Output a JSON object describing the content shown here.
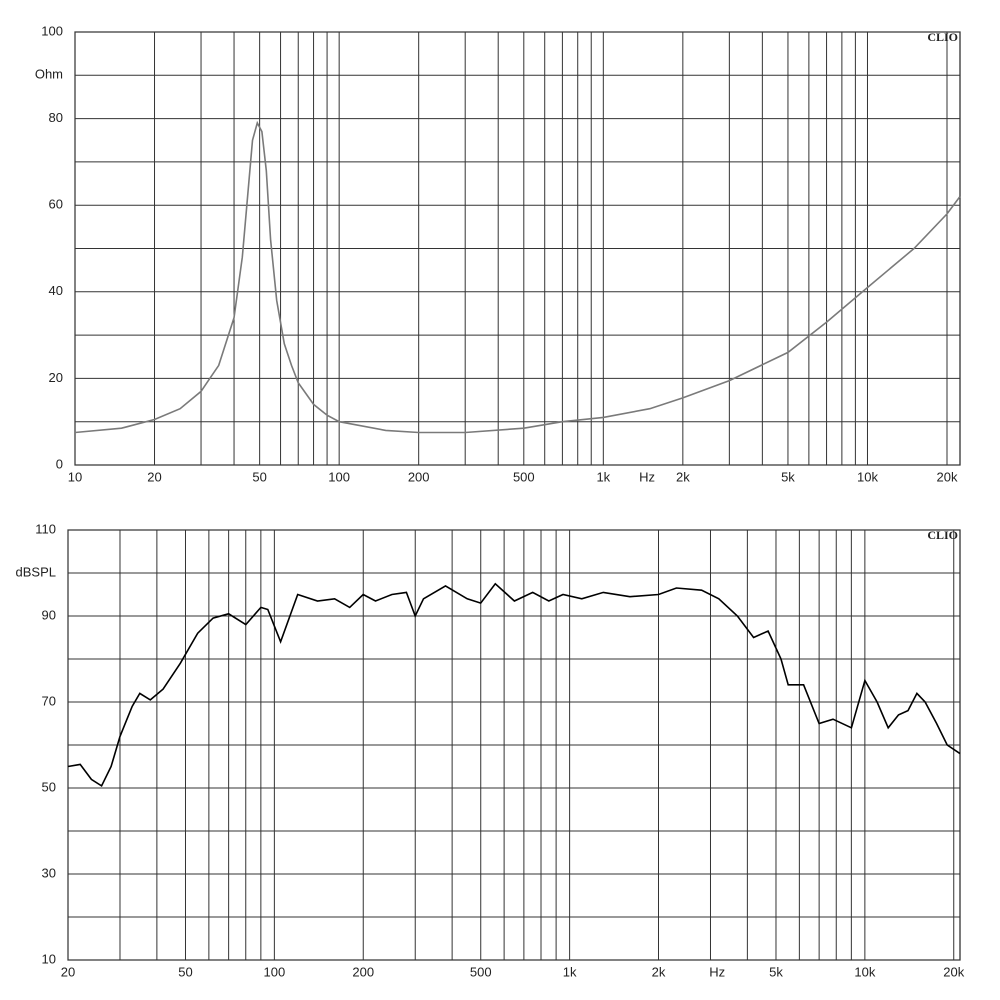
{
  "chart_data": [
    {
      "type": "line",
      "log_x": true,
      "grid": true,
      "ylabel": "Ohm",
      "xlabel": "Hz",
      "annotation": "CLIO",
      "xlim": [
        10,
        22400
      ],
      "ylim": [
        0,
        100
      ],
      "xticks": [
        10,
        20,
        50,
        100,
        200,
        500,
        {
          "value": 1000,
          "label": "1k"
        },
        {
          "value": 2000,
          "label": "2k"
        },
        {
          "value": 5000,
          "label": "5k"
        },
        {
          "value": 10000,
          "label": "10k"
        },
        {
          "value": 20000,
          "label": "20k"
        }
      ],
      "yticks": [
        0,
        20,
        40,
        60,
        80,
        100
      ],
      "x": [
        10,
        15,
        20,
        25,
        30,
        35,
        40,
        43,
        45,
        47,
        49,
        51,
        53,
        55,
        58,
        62,
        66,
        70,
        80,
        90,
        100,
        150,
        200,
        300,
        500,
        700,
        1000,
        1500,
        2000,
        3000,
        5000,
        7000,
        10000,
        15000,
        20000,
        22400
      ],
      "series": [
        {
          "color": "#7a7a7a",
          "values": [
            7.5,
            8.5,
            10.5,
            13,
            17,
            23,
            34,
            48,
            62,
            75,
            79,
            77,
            68,
            52,
            38,
            28,
            23,
            19,
            14,
            11.5,
            10,
            8,
            7.5,
            7.5,
            8.5,
            10,
            11,
            13,
            15.5,
            19.5,
            26,
            33,
            41,
            50,
            58,
            62
          ]
        }
      ]
    },
    {
      "type": "line",
      "log_x": true,
      "grid": true,
      "ylabel": "dBSPL",
      "xlabel": "Hz",
      "annotation": "CLIO",
      "xlim": [
        20,
        21000
      ],
      "ylim": [
        10,
        110
      ],
      "xticks": [
        20,
        50,
        100,
        200,
        500,
        {
          "value": 1000,
          "label": "1k"
        },
        {
          "value": 2000,
          "label": "2k"
        },
        {
          "value": 5000,
          "label": "5k"
        },
        {
          "value": 10000,
          "label": "10k"
        },
        {
          "value": 20000,
          "label": "20k"
        }
      ],
      "yticks": [
        10,
        30,
        50,
        70,
        90,
        110
      ],
      "x": [
        20,
        22,
        24,
        26,
        28,
        30,
        33,
        35,
        38,
        42,
        48,
        55,
        62,
        70,
        80,
        90,
        95,
        105,
        120,
        140,
        160,
        180,
        200,
        220,
        250,
        280,
        300,
        320,
        380,
        450,
        500,
        560,
        650,
        750,
        850,
        950,
        1100,
        1300,
        1600,
        2000,
        2300,
        2800,
        3200,
        3700,
        4200,
        4700,
        5200,
        5500,
        6200,
        7000,
        7800,
        9000,
        10000,
        11000,
        12000,
        13000,
        14000,
        15000,
        16000,
        17500,
        19000,
        21000
      ],
      "series": [
        {
          "color": "#000000",
          "values": [
            55,
            55.5,
            52,
            50.5,
            55,
            62,
            69,
            72,
            70.5,
            73,
            79,
            86,
            89.5,
            90.5,
            88,
            92,
            91.5,
            84,
            95,
            93.5,
            94,
            92,
            95,
            93.5,
            95,
            95.5,
            90,
            94,
            97,
            94,
            93,
            97.5,
            93.5,
            95.5,
            93.5,
            95,
            94,
            95.5,
            94.5,
            95,
            96.5,
            96,
            94,
            90,
            85,
            86.5,
            80,
            74,
            74,
            65,
            66,
            64,
            75,
            70,
            64,
            67,
            68,
            72,
            70,
            65,
            60,
            58
          ]
        }
      ]
    }
  ]
}
